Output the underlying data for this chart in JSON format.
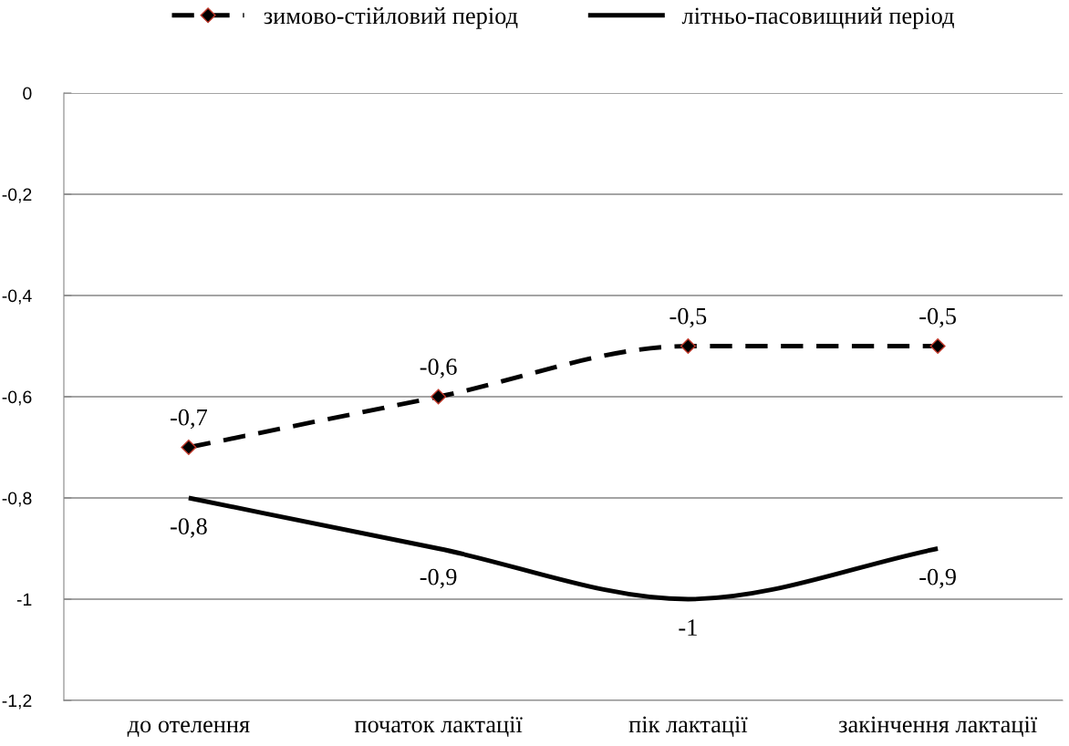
{
  "chart_data": {
    "type": "line",
    "categories": [
      "до отелення",
      "початок лактації",
      "пік лактації",
      "закінчення лактації"
    ],
    "series": [
      {
        "name": "зимово-стійловий період",
        "color": "#000000",
        "values": [
          -0.7,
          -0.6,
          -0.5,
          -0.5
        ],
        "value_labels": [
          "-0,7",
          "-0,6",
          "-0,5",
          "-0,5"
        ],
        "marker": "diamond",
        "line_style": "dashed"
      },
      {
        "name": "літньо-пасовищний період",
        "color": "#000000",
        "values": [
          -0.8,
          -0.9,
          -1,
          -0.9
        ],
        "value_labels": [
          "-0,8",
          "-0,9",
          "-1",
          "-0,9"
        ],
        "marker": "none",
        "line_style": "solid"
      }
    ],
    "ylim": [
      -1.2,
      0
    ],
    "yticks": [
      {
        "value": -1.2,
        "label": "-1,2"
      },
      {
        "value": -1,
        "label": "-1"
      },
      {
        "value": -0.8,
        "label": "-0,8"
      },
      {
        "value": -0.6,
        "label": "-0,6"
      },
      {
        "value": -0.4,
        "label": "-0,4"
      },
      {
        "value": -0.2,
        "label": "-0,2"
      },
      {
        "value": 0,
        "label": "0"
      }
    ],
    "grid": "y",
    "legend": "top"
  }
}
